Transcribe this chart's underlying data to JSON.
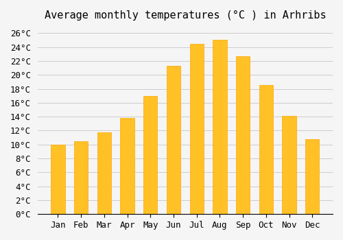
{
  "title": "Average monthly temperatures (°C ) in Arhribs",
  "months": [
    "Jan",
    "Feb",
    "Mar",
    "Apr",
    "May",
    "Jun",
    "Jul",
    "Aug",
    "Sep",
    "Oct",
    "Nov",
    "Dec"
  ],
  "values": [
    10.0,
    10.5,
    11.7,
    13.8,
    17.0,
    21.3,
    24.5,
    25.0,
    22.7,
    18.5,
    14.1,
    10.8
  ],
  "bar_color": "#FFC125",
  "bar_edge_color": "#FFA500",
  "background_color": "#F5F5F5",
  "grid_color": "#CCCCCC",
  "ylim": [
    0,
    27
  ],
  "ytick_step": 2,
  "title_fontsize": 11,
  "tick_fontsize": 9,
  "font_family": "monospace"
}
